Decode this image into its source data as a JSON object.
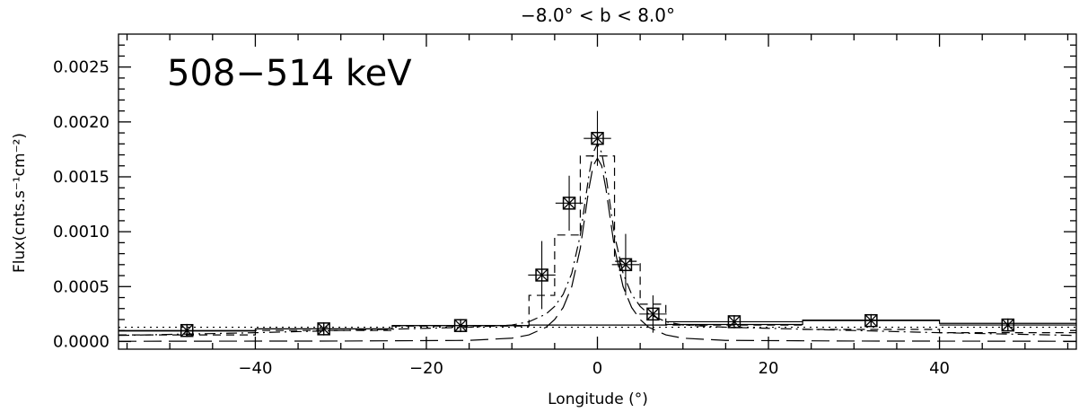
{
  "chart_data": {
    "type": "scatter",
    "title": "−8.0° < b <  8.0°",
    "xlabel": "Longitude (°)",
    "ylabel": "Flux(cnts.s⁻¹cm⁻²)",
    "annotation": "508−514 keV",
    "xlim": [
      -56,
      56
    ],
    "ylim": [
      -7e-05,
      0.0028
    ],
    "x_ticks": [
      -40,
      -20,
      0,
      20,
      40
    ],
    "x_tick_labels": [
      "−40",
      "−20",
      "0",
      "20",
      "40"
    ],
    "y_ticks": [
      0.0,
      0.0005,
      0.001,
      0.0015,
      0.002,
      0.0025
    ],
    "y_tick_labels": [
      "0.0000",
      "0.0005",
      "0.0010",
      "0.0015",
      "0.0020",
      "0.0025"
    ],
    "grid": false,
    "legend": "none",
    "series": [
      {
        "style": "points-with-errorbars",
        "marker": "box-asterisk",
        "x": [
          -48,
          -32,
          -16,
          -6.5,
          -3.3,
          0,
          3.3,
          6.5,
          16,
          32,
          48
        ],
        "y": [
          0.0001,
          0.000115,
          0.000145,
          0.000605,
          0.00126,
          0.00185,
          0.0007,
          0.00025,
          0.00018,
          0.00019,
          0.00015
        ],
        "xerr": [
          8,
          8,
          8,
          1.6,
          1.6,
          1.6,
          1.6,
          1.6,
          8,
          8,
          8
        ],
        "yerr": [
          6e-05,
          6e-05,
          6e-05,
          0.00031,
          0.00025,
          0.00025,
          0.00028,
          0.00017,
          6e-05,
          6e-05,
          6e-05
        ]
      },
      {
        "style": "solid-histogram",
        "edges": [
          -56,
          -40,
          -24,
          -8,
          8,
          24,
          40,
          56
        ],
        "values": [
          9.5e-05,
          0.000115,
          0.000145,
          0.00015,
          0.000155,
          0.000195,
          0.000165
        ]
      },
      {
        "style": "dashed-histogram",
        "edges": [
          -56,
          -40,
          -24,
          -8,
          -5,
          -2,
          2,
          5,
          8,
          24,
          40,
          56
        ],
        "values": [
          6e-05,
          0.0001,
          0.00014,
          0.00042,
          0.00097,
          0.00169,
          0.00073,
          0.00034,
          0.00015,
          0.00011,
          8e-05
        ]
      },
      {
        "style": "dotted-line",
        "label_role": "disk",
        "x": [
          -56,
          56
        ],
        "y": [
          0.00013,
          0.00013
        ]
      },
      {
        "style": "long-dash-line",
        "label_role": "bulge",
        "x": [
          -56,
          -30,
          -15,
          -10,
          -8,
          -6,
          -5,
          -4,
          -3,
          -2,
          -1.5,
          -1,
          -0.5,
          0,
          0.5,
          1,
          1.5,
          2,
          3,
          4,
          5,
          6,
          8,
          10,
          15,
          30,
          56
        ],
        "y": [
          2e-06,
          4e-06,
          1e-05,
          3e-05,
          6e-05,
          0.00013,
          0.0002,
          0.00031,
          0.0005,
          0.00085,
          0.00112,
          0.00139,
          0.0016,
          0.00167,
          0.0016,
          0.00139,
          0.00112,
          0.00085,
          0.0005,
          0.00031,
          0.0002,
          0.00013,
          6e-05,
          3e-05,
          1e-05,
          4e-06,
          2e-06
        ]
      },
      {
        "style": "dash-dot-line",
        "label_role": "total",
        "x": [
          -56,
          -40,
          -30,
          -20,
          -15,
          -10,
          -8,
          -6,
          -5,
          -4,
          -3,
          -2,
          -1.5,
          -1,
          -0.5,
          0,
          0.5,
          1,
          1.5,
          2,
          3,
          4,
          5,
          6,
          8,
          10,
          15,
          20,
          30,
          40,
          56
        ],
        "y": [
          5.5e-05,
          8e-05,
          0.0001,
          0.00012,
          0.00013,
          0.00015,
          0.00018,
          0.00025,
          0.00032,
          0.00043,
          0.00062,
          0.00097,
          0.00124,
          0.00151,
          0.00172,
          0.0018,
          0.00172,
          0.00151,
          0.00124,
          0.00097,
          0.00062,
          0.00043,
          0.00032,
          0.00025,
          0.00018,
          0.00015,
          0.00013,
          0.00012,
          0.0001,
          8e-05,
          5.5e-05
        ]
      }
    ]
  }
}
